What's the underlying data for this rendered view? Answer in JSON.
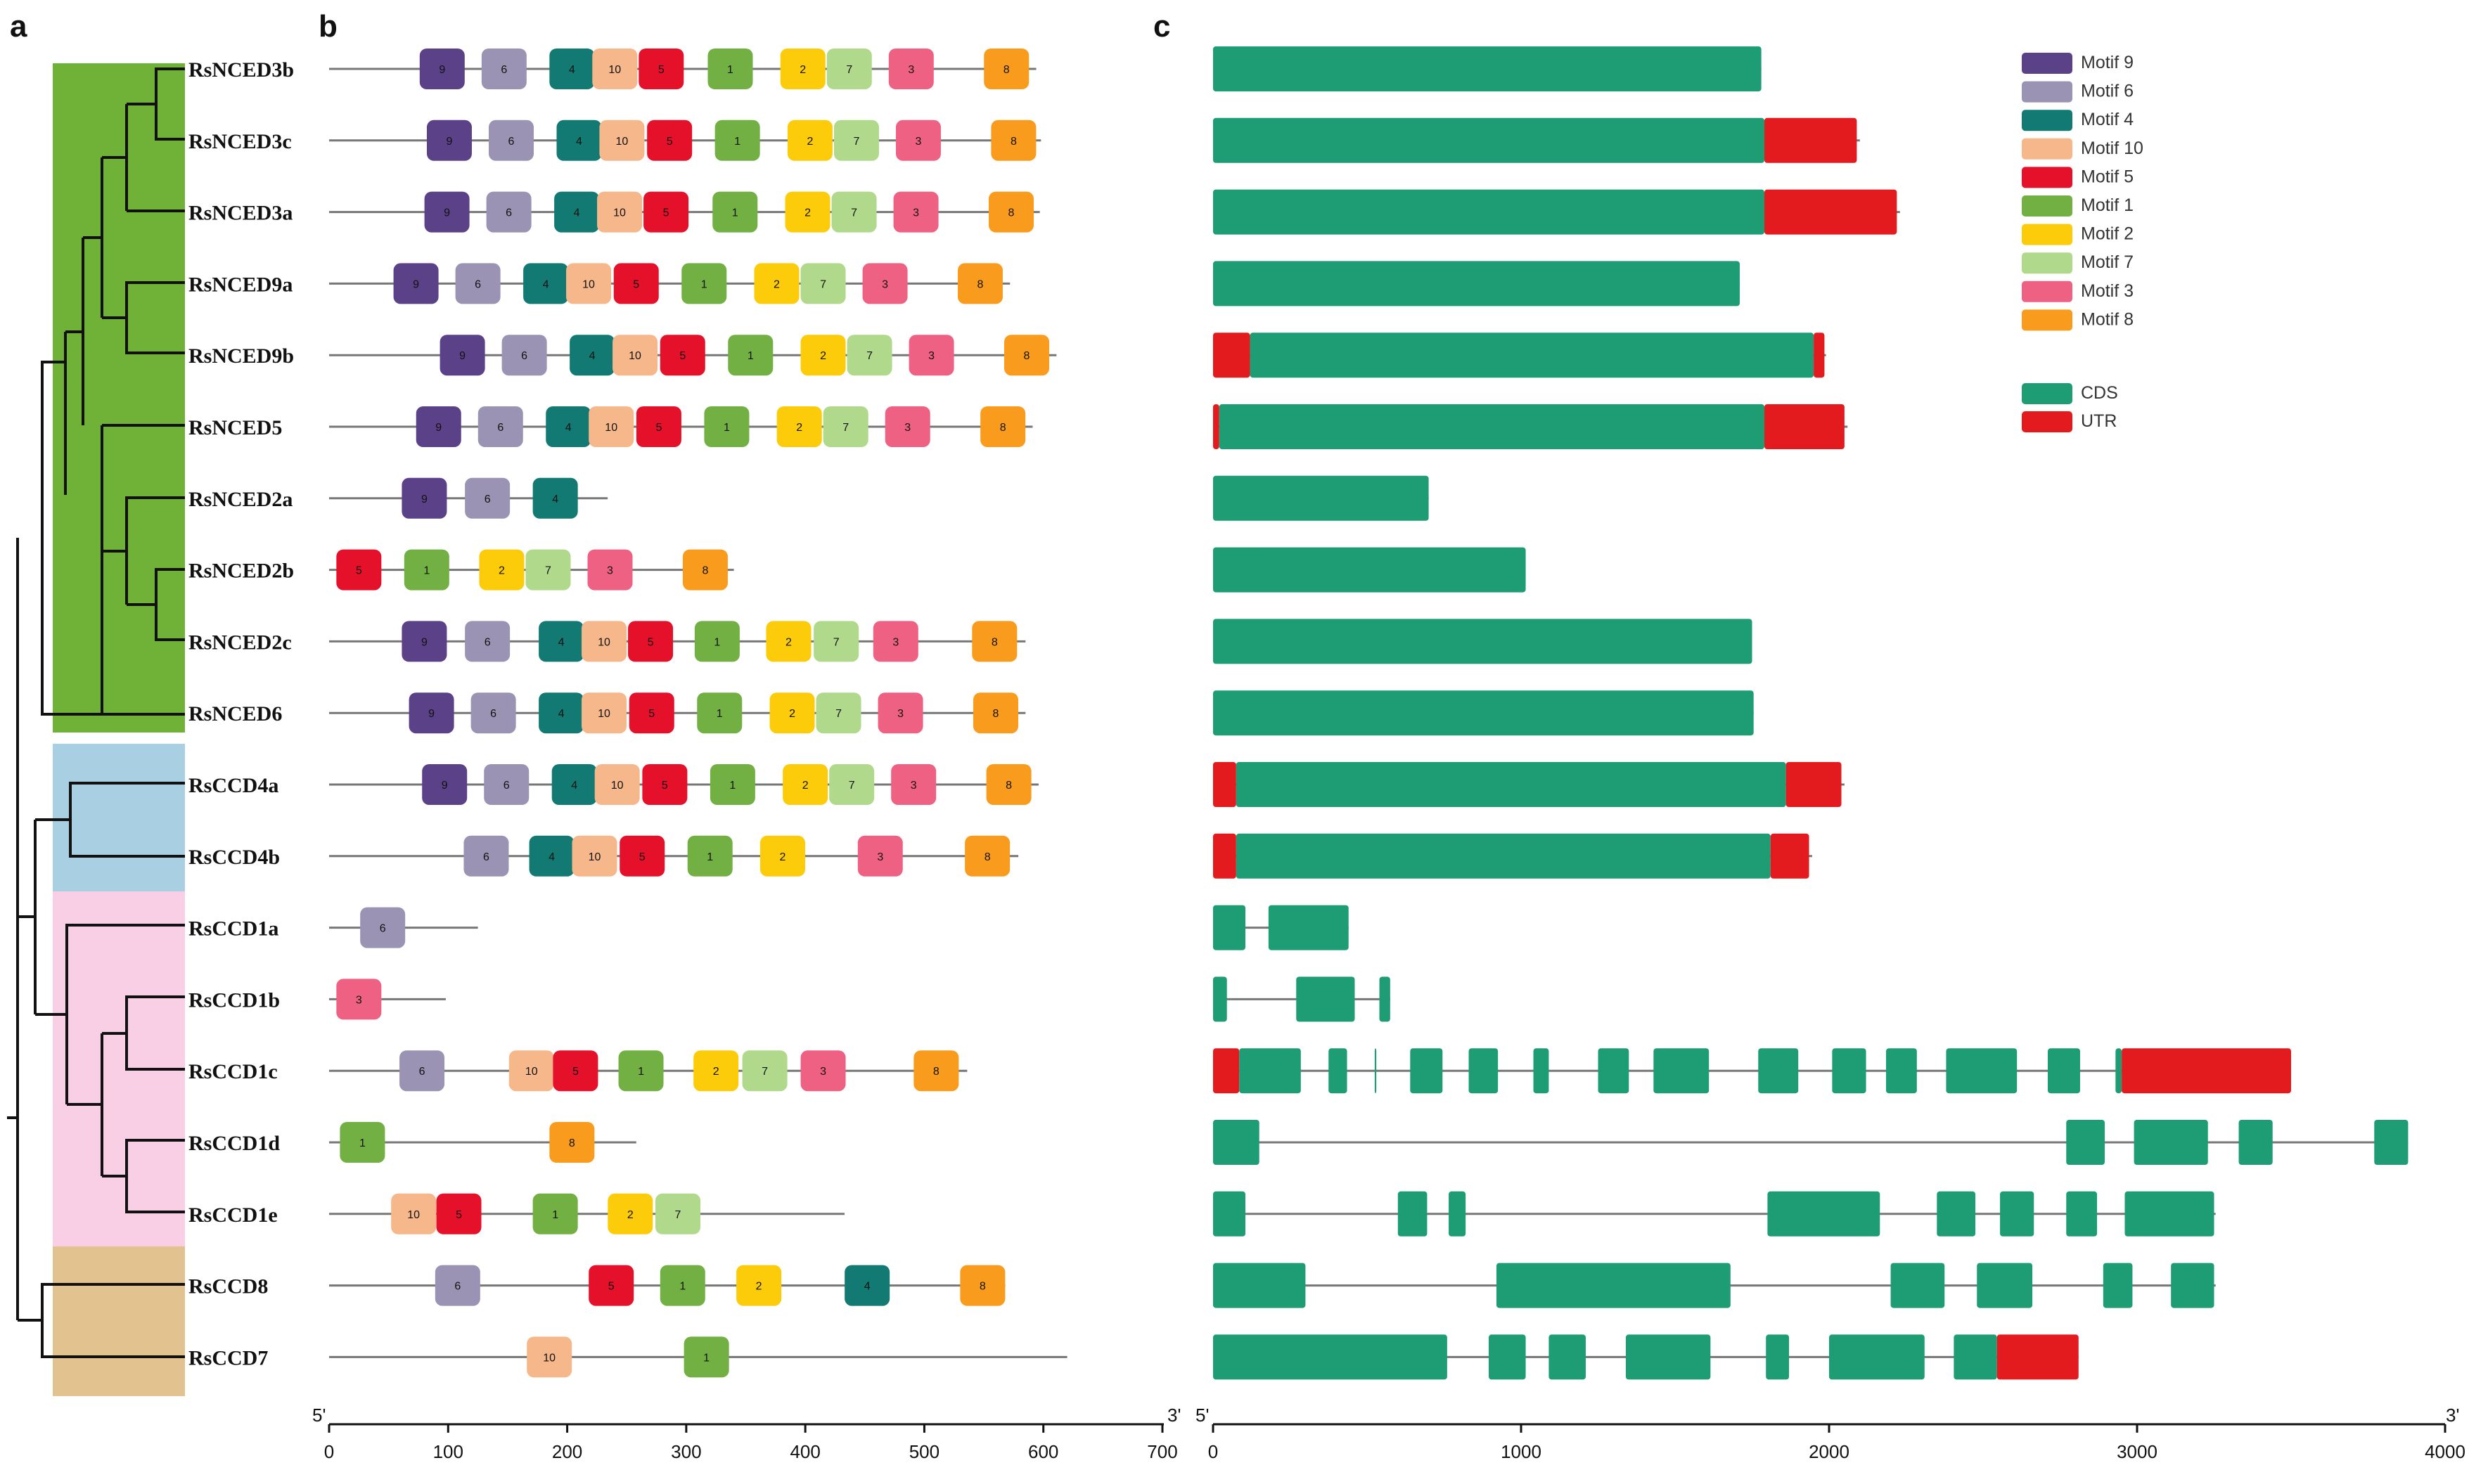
{
  "panels": {
    "a": "a",
    "b": "b",
    "c": "c"
  },
  "colors": {
    "motifs": {
      "1": "#72b043",
      "2": "#fccb0a",
      "3": "#ee6183",
      "4": "#127a73",
      "5": "#e5112b",
      "6": "#9a93b3",
      "7": "#b0d98b",
      "8": "#f99b1c",
      "9": "#5b4187",
      "10": "#f6b78a"
    },
    "cds": "#1e9c74",
    "utr": "#e31b1e",
    "clades": {
      "NCED": "#70b138",
      "CCD4": "#a9cfe2",
      "CCD1": "#f9cfe6",
      "CCD78": "#e2c390"
    },
    "line": "#777777"
  },
  "legend": {
    "motifs": [
      {
        "num": 9,
        "label": "Motif 9"
      },
      {
        "num": 6,
        "label": "Motif 6"
      },
      {
        "num": 4,
        "label": "Motif 4"
      },
      {
        "num": 10,
        "label": "Motif 10"
      },
      {
        "num": 5,
        "label": "Motif 5"
      },
      {
        "num": 1,
        "label": "Motif 1"
      },
      {
        "num": 2,
        "label": "Motif 2"
      },
      {
        "num": 7,
        "label": "Motif 7"
      },
      {
        "num": 3,
        "label": "Motif 3"
      },
      {
        "num": 8,
        "label": "Motif 8"
      }
    ],
    "structure": [
      {
        "key": "cds",
        "label": "CDS"
      },
      {
        "key": "utr",
        "label": "UTR"
      }
    ]
  },
  "axis_b": {
    "ticks": [
      0,
      100,
      200,
      300,
      400,
      500,
      600,
      700
    ],
    "max": 700,
    "start_label": "5'",
    "end_label": "3'"
  },
  "axis_c": {
    "ticks": [
      0,
      1000,
      2000,
      3000,
      4000
    ],
    "max": 4000,
    "start_label": "5'",
    "end_label": "3'"
  },
  "genes": [
    {
      "name": "RsNCED3b",
      "protein_length": 594,
      "motifs": [
        [
          9,
          95
        ],
        [
          6,
          147
        ],
        [
          4,
          204
        ],
        [
          10,
          240
        ],
        [
          5,
          279
        ],
        [
          1,
          337
        ],
        [
          2,
          398
        ],
        [
          7,
          437
        ],
        [
          3,
          489
        ],
        [
          8,
          569
        ]
      ],
      "structure": {
        "length": 1780,
        "features": [
          [
            "cds",
            0,
            1780
          ]
        ]
      }
    },
    {
      "name": "RsNCED3c",
      "protein_length": 598,
      "motifs": [
        [
          9,
          101
        ],
        [
          6,
          153
        ],
        [
          4,
          210
        ],
        [
          10,
          246
        ],
        [
          5,
          286
        ],
        [
          1,
          343
        ],
        [
          2,
          404
        ],
        [
          7,
          443
        ],
        [
          3,
          495
        ],
        [
          8,
          575
        ]
      ],
      "structure": {
        "length": 2100,
        "features": [
          [
            "cds",
            0,
            1790
          ],
          [
            "utr",
            1790,
            2090
          ]
        ]
      }
    },
    {
      "name": "RsNCED3a",
      "protein_length": 597,
      "motifs": [
        [
          9,
          99
        ],
        [
          6,
          151
        ],
        [
          4,
          208
        ],
        [
          10,
          244
        ],
        [
          5,
          283
        ],
        [
          1,
          341
        ],
        [
          2,
          402
        ],
        [
          7,
          441
        ],
        [
          3,
          493
        ],
        [
          8,
          573
        ]
      ],
      "structure": {
        "length": 2230,
        "features": [
          [
            "cds",
            0,
            1790
          ],
          [
            "utr",
            1790,
            2220
          ]
        ]
      }
    },
    {
      "name": "RsNCED9a",
      "protein_length": 572,
      "motifs": [
        [
          9,
          73
        ],
        [
          6,
          125
        ],
        [
          4,
          182
        ],
        [
          10,
          218
        ],
        [
          5,
          258
        ],
        [
          1,
          315
        ],
        [
          2,
          376
        ],
        [
          7,
          415
        ],
        [
          3,
          467
        ],
        [
          8,
          547
        ]
      ],
      "structure": {
        "length": 1710,
        "features": [
          [
            "cds",
            0,
            1710
          ]
        ]
      }
    },
    {
      "name": "RsNCED9b",
      "protein_length": 611,
      "motifs": [
        [
          9,
          112
        ],
        [
          6,
          164
        ],
        [
          4,
          221
        ],
        [
          10,
          257
        ],
        [
          5,
          297
        ],
        [
          1,
          354
        ],
        [
          2,
          415
        ],
        [
          7,
          454
        ],
        [
          3,
          506
        ],
        [
          8,
          586
        ]
      ],
      "structure": {
        "length": 1990,
        "features": [
          [
            "utr",
            0,
            120
          ],
          [
            "cds",
            120,
            1950
          ],
          [
            "utr",
            1950,
            1985
          ]
        ]
      }
    },
    {
      "name": "RsNCED5",
      "protein_length": 591,
      "motifs": [
        [
          9,
          92
        ],
        [
          6,
          144
        ],
        [
          4,
          201
        ],
        [
          10,
          237
        ],
        [
          5,
          277
        ],
        [
          1,
          334
        ],
        [
          2,
          395
        ],
        [
          7,
          434
        ],
        [
          3,
          486
        ],
        [
          8,
          566
        ]
      ],
      "structure": {
        "length": 2060,
        "features": [
          [
            "utr",
            0,
            20
          ],
          [
            "cds",
            20,
            1790
          ],
          [
            "utr",
            1790,
            2050
          ]
        ]
      }
    },
    {
      "name": "RsNCED2a",
      "protein_length": 234,
      "motifs": [
        [
          9,
          80
        ],
        [
          6,
          133
        ],
        [
          4,
          190
        ]
      ],
      "structure": {
        "length": 700,
        "features": [
          [
            "cds",
            0,
            700
          ]
        ]
      }
    },
    {
      "name": "RsNCED2b",
      "protein_length": 340,
      "motifs": [
        [
          5,
          25
        ],
        [
          1,
          82
        ],
        [
          2,
          145
        ],
        [
          7,
          184
        ],
        [
          3,
          236
        ],
        [
          8,
          316
        ]
      ],
      "structure": {
        "length": 1015,
        "features": [
          [
            "cds",
            0,
            1015
          ]
        ]
      }
    },
    {
      "name": "RsNCED2c",
      "protein_length": 585,
      "motifs": [
        [
          9,
          80
        ],
        [
          6,
          133
        ],
        [
          4,
          195
        ],
        [
          10,
          231
        ],
        [
          5,
          270
        ],
        [
          1,
          326
        ],
        [
          2,
          386
        ],
        [
          7,
          426
        ],
        [
          3,
          476
        ],
        [
          8,
          559
        ]
      ],
      "structure": {
        "length": 1750,
        "features": [
          [
            "cds",
            0,
            1750
          ]
        ]
      }
    },
    {
      "name": "RsNCED6",
      "protein_length": 585,
      "motifs": [
        [
          9,
          86
        ],
        [
          6,
          138
        ],
        [
          4,
          195
        ],
        [
          10,
          231
        ],
        [
          5,
          271
        ],
        [
          1,
          328
        ],
        [
          2,
          389
        ],
        [
          7,
          428
        ],
        [
          3,
          480
        ],
        [
          8,
          560
        ]
      ],
      "structure": {
        "length": 1755,
        "features": [
          [
            "cds",
            0,
            1755
          ]
        ]
      }
    },
    {
      "name": "RsCCD4a",
      "protein_length": 596,
      "motifs": [
        [
          9,
          97
        ],
        [
          6,
          149
        ],
        [
          4,
          206
        ],
        [
          10,
          242
        ],
        [
          5,
          282
        ],
        [
          1,
          339
        ],
        [
          2,
          400
        ],
        [
          7,
          439
        ],
        [
          3,
          491
        ],
        [
          8,
          571
        ]
      ],
      "structure": {
        "length": 2050,
        "features": [
          [
            "utr",
            0,
            75
          ],
          [
            "cds",
            75,
            1860
          ],
          [
            "utr",
            1860,
            2040
          ]
        ]
      }
    },
    {
      "name": "RsCCD4b",
      "protein_length": 579,
      "motifs": [
        [
          6,
          132
        ],
        [
          4,
          187
        ],
        [
          10,
          223
        ],
        [
          5,
          263
        ],
        [
          1,
          320
        ],
        [
          2,
          381
        ],
        [
          3,
          463
        ],
        [
          8,
          553
        ]
      ],
      "structure": {
        "length": 1945,
        "features": [
          [
            "utr",
            0,
            75
          ],
          [
            "cds",
            75,
            1810
          ],
          [
            "utr",
            1810,
            1935
          ]
        ]
      }
    },
    {
      "name": "RsCCD1a",
      "protein_length": 125,
      "motifs": [
        [
          6,
          45
        ]
      ],
      "structure": {
        "length": 440,
        "features": [
          [
            "cds",
            0,
            105
          ],
          [
            "cds",
            180,
            440
          ]
        ]
      }
    },
    {
      "name": "RsCCD1b",
      "protein_length": 98,
      "motifs": [
        [
          3,
          25
        ]
      ],
      "structure": {
        "length": 575,
        "features": [
          [
            "cds",
            0,
            45
          ],
          [
            "cds",
            270,
            460
          ],
          [
            "cds",
            540,
            575
          ]
        ]
      }
    },
    {
      "name": "RsCCD1c",
      "protein_length": 536,
      "motifs": [
        [
          6,
          78
        ],
        [
          10,
          170
        ],
        [
          5,
          207
        ],
        [
          1,
          262
        ],
        [
          2,
          325
        ],
        [
          7,
          366
        ],
        [
          3,
          415
        ],
        [
          8,
          510
        ]
      ],
      "structure": {
        "length": 3500,
        "features": [
          [
            "utr",
            0,
            85
          ],
          [
            "cds",
            85,
            285
          ],
          [
            "cds",
            375,
            435
          ],
          [
            "cds",
            525,
            530
          ],
          [
            "cds",
            640,
            745
          ],
          [
            "cds",
            830,
            925
          ],
          [
            "cds",
            1040,
            1090
          ],
          [
            "cds",
            1250,
            1350
          ],
          [
            "cds",
            1430,
            1610
          ],
          [
            "cds",
            1770,
            1900
          ],
          [
            "cds",
            2010,
            2120
          ],
          [
            "cds",
            2185,
            2285
          ],
          [
            "cds",
            2380,
            2610
          ],
          [
            "cds",
            2710,
            2815
          ],
          [
            "cds",
            2930,
            2950
          ],
          [
            "utr",
            2950,
            3500
          ]
        ]
      }
    },
    {
      "name": "RsCCD1d",
      "protein_length": 258,
      "motifs": [
        [
          1,
          28
        ],
        [
          8,
          204
        ]
      ],
      "structure": {
        "length": 3880,
        "features": [
          [
            "cds",
            0,
            150
          ],
          [
            "cds",
            2770,
            2895
          ],
          [
            "cds",
            2990,
            3230
          ],
          [
            "cds",
            3330,
            3440
          ],
          [
            "cds",
            3770,
            3880
          ]
        ]
      }
    },
    {
      "name": "RsCCD1e",
      "protein_length": 433,
      "motifs": [
        [
          10,
          71
        ],
        [
          5,
          109
        ],
        [
          1,
          190
        ],
        [
          2,
          253
        ],
        [
          7,
          293
        ]
      ],
      "structure": {
        "length": 3255,
        "features": [
          [
            "cds",
            0,
            105
          ],
          [
            "cds",
            600,
            695
          ],
          [
            "cds",
            765,
            820
          ],
          [
            "cds",
            1800,
            2165
          ],
          [
            "cds",
            2350,
            2475
          ],
          [
            "cds",
            2555,
            2665
          ],
          [
            "cds",
            2770,
            2870
          ],
          [
            "cds",
            2960,
            3250
          ]
        ]
      }
    },
    {
      "name": "RsCCD8",
      "protein_length": 568,
      "motifs": [
        [
          6,
          108
        ],
        [
          5,
          237
        ],
        [
          1,
          297
        ],
        [
          2,
          361
        ],
        [
          4,
          452
        ],
        [
          8,
          549
        ]
      ],
      "structure": {
        "length": 3255,
        "features": [
          [
            "cds",
            0,
            300
          ],
          [
            "cds",
            920,
            1680
          ],
          [
            "cds",
            2200,
            2375
          ],
          [
            "cds",
            2480,
            2660
          ],
          [
            "cds",
            2890,
            2985
          ],
          [
            "cds",
            3110,
            3250
          ]
        ]
      }
    },
    {
      "name": "RsCCD7",
      "protein_length": 620,
      "motifs": [
        [
          10,
          185
        ],
        [
          1,
          317
        ]
      ],
      "structure": {
        "length": 2810,
        "features": [
          [
            "cds",
            0,
            760
          ],
          [
            "cds",
            895,
            1015
          ],
          [
            "cds",
            1090,
            1210
          ],
          [
            "cds",
            1340,
            1615
          ],
          [
            "cds",
            1795,
            1870
          ],
          [
            "cds",
            2000,
            2310
          ],
          [
            "cds",
            2405,
            2545
          ],
          [
            "utr",
            2545,
            2810
          ]
        ]
      }
    }
  ]
}
